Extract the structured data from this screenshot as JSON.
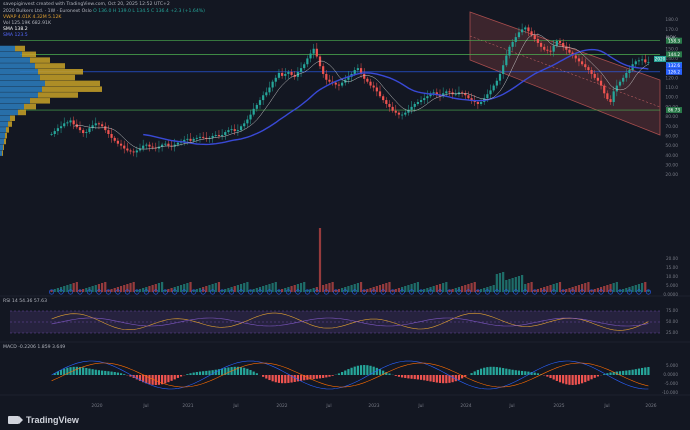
{
  "header": {
    "creator": "savepiginvest created with TradingView.com, Oct 20, 2025 12:52 UTC+2"
  },
  "legend": {
    "symbol": "2020 Bulkers Ltd. · 1W · Euronext Oslo",
    "ohlc": "O 136.0  H 139.0  L 134.5  C 136.4  +2.3 (+1.64%)",
    "vwap": "VWAP  4.01K  4.32M  5.12K",
    "vol": "Vol  125.19K  682.91K",
    "sma1": "SMA  138.2",
    "sma2": "SMA  123.5"
  },
  "currency": "NOK",
  "colors": {
    "bg": "#131722",
    "up": "#26a69a",
    "down": "#ef5350",
    "sma": "#3949d6",
    "vp_up": "#2d7fc1",
    "vp_dn": "#c9a227",
    "channel": "#a84d4d"
  },
  "price_axis": {
    "ticks": [
      "180.0",
      "170.0",
      "160.0",
      "150.0",
      "140.0",
      "130.0",
      "120.0",
      "110.0",
      "100.0",
      "90.00",
      "80.00",
      "70.00",
      "60.00",
      "50.00",
      "40.00",
      "30.00",
      "20.00"
    ],
    "badges": [
      {
        "text": "158.3",
        "color": "#2a7a4a"
      },
      {
        "text": "144.2",
        "color": "#2a7a4a"
      },
      {
        "text": "2020",
        "color": "#26a69a"
      },
      {
        "text": "136.4",
        "color": "#26a69a"
      },
      {
        "text": "132.6",
        "color": "#2962ff"
      },
      {
        "text": "126.2",
        "color": "#2962ff"
      },
      {
        "text": "86.73",
        "color": "#2a7a4a"
      }
    ]
  },
  "vol_axis": {
    "ticks": [
      "20.00",
      "15.00",
      "10.00",
      "5.000",
      "0.0000"
    ]
  },
  "rsi": {
    "label": "RSI  14  54.36  57.63",
    "ticks": [
      "75.00",
      "50.00",
      "25.00"
    ]
  },
  "macd": {
    "label": "MACD  -0.2206  1.859  3.649",
    "ticks": [
      "5.000",
      "0.0000",
      "-5.000",
      "-10.000"
    ]
  },
  "time_axis": [
    "2020",
    "Jul",
    "2021",
    "Jul",
    "2022",
    "Jul",
    "2023",
    "Jul",
    "2024",
    "Jul",
    "2025",
    "Jul",
    "2026"
  ],
  "brand": "TradingView",
  "chart_data": {
    "type": "candlestick",
    "ylim": [
      30,
      190
    ],
    "weekly_close": [
      62,
      65,
      68,
      70,
      73,
      74,
      76,
      72,
      69,
      66,
      63,
      64,
      68,
      71,
      73,
      72,
      70,
      66,
      62,
      58,
      55,
      52,
      50,
      47,
      45,
      44,
      43,
      45,
      47,
      50,
      51,
      49,
      48,
      47,
      49,
      51,
      52,
      50,
      49,
      51,
      53,
      54,
      56,
      57,
      55,
      57,
      58,
      59,
      58,
      57,
      58,
      60,
      61,
      60,
      61,
      64,
      66,
      67,
      65,
      66,
      70,
      73,
      77,
      82,
      88,
      92,
      97,
      102,
      105,
      110,
      116,
      120,
      125,
      122,
      124,
      126,
      123,
      121,
      126,
      130,
      134,
      140,
      145,
      150,
      142,
      132,
      124,
      118,
      116,
      115,
      113,
      112,
      115,
      118,
      121,
      124,
      128,
      130,
      124,
      119,
      116,
      112,
      110,
      106,
      101,
      97,
      93,
      90,
      86,
      84,
      82,
      82,
      84,
      87,
      90,
      93,
      95,
      97,
      99,
      101,
      104,
      105,
      103,
      101,
      104,
      106,
      105,
      103,
      103,
      105,
      104,
      102,
      99,
      96,
      95,
      93,
      95,
      99,
      103,
      107,
      112,
      117,
      124,
      133,
      143,
      152,
      157,
      162,
      167,
      170,
      172,
      168,
      164,
      160,
      156,
      152,
      149,
      148,
      147,
      153,
      158,
      156,
      152,
      149,
      146,
      143,
      140,
      137,
      134,
      131,
      128,
      124,
      120,
      117,
      112,
      104,
      98,
      95,
      106,
      112,
      116,
      120,
      125,
      128,
      134,
      137,
      138,
      139,
      136,
      136
    ],
    "sma_long": [
      null
    ],
    "channel_top": [
      [
        185,
        470
      ],
      [
        132,
        660
      ]
    ],
    "channel_bottom": [
      [
        128,
        470
      ],
      [
        88,
        660
      ]
    ],
    "resistance": [
      158.3,
      144.2,
      126.2,
      86.73
    ],
    "rsi_last": 54.36,
    "macd_last": -0.2206
  }
}
